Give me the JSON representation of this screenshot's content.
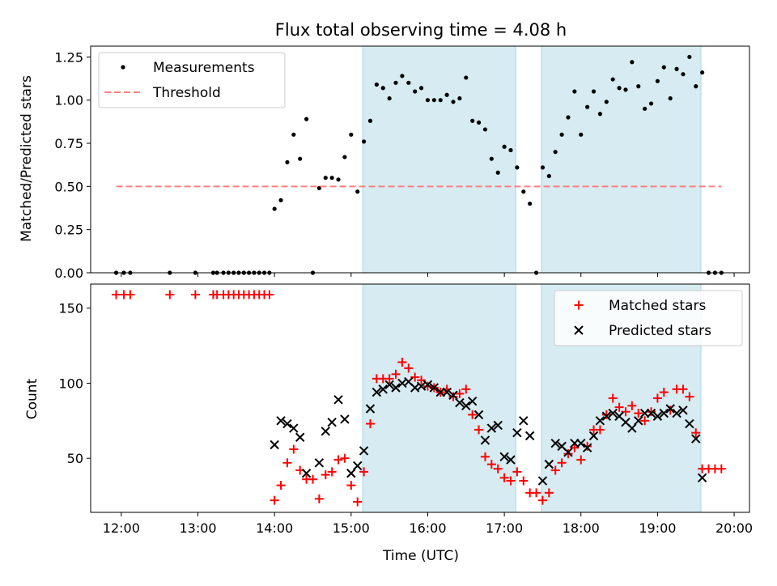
{
  "title": "Flux total observing time = 4.08 h",
  "xlabel": "Time (UTC)",
  "x_ticks": [
    "12:00",
    "13:00",
    "14:00",
    "15:00",
    "16:00",
    "17:00",
    "18:00",
    "19:00",
    "20:00"
  ],
  "colors": {
    "band": "#add8e6",
    "measurement": "#000000",
    "threshold": "#ff7f7f",
    "matched": "#ff0000",
    "predicted": "#000000"
  },
  "chart_data": [
    {
      "type": "scatter",
      "ylabel": "Matched/Predicted stars",
      "xlim": [
        "11:36",
        "20:12"
      ],
      "ylim": [
        0,
        1.3125
      ],
      "y_ticks": [
        "0.00",
        "0.25",
        "0.50",
        "0.75",
        "1.00",
        "1.25"
      ],
      "legend_position": "top-left",
      "grid": false,
      "shaded_intervals": [
        [
          "15:09",
          "17:09"
        ],
        [
          "17:29",
          "19:34"
        ]
      ],
      "series": [
        {
          "name": "Measurements",
          "marker": "dot",
          "points": [
            [
              "11:56",
              0
            ],
            [
              "12:02",
              0
            ],
            [
              "12:07",
              0
            ],
            [
              "12:38",
              0
            ],
            [
              "12:58",
              0
            ],
            [
              "13:12",
              0
            ],
            [
              "13:15",
              0
            ],
            [
              "13:20",
              0
            ],
            [
              "13:24",
              0
            ],
            [
              "13:28",
              0
            ],
            [
              "13:32",
              0
            ],
            [
              "13:36",
              0
            ],
            [
              "13:40",
              0
            ],
            [
              "13:44",
              0
            ],
            [
              "13:48",
              0
            ],
            [
              "13:52",
              0
            ],
            [
              "13:56",
              0
            ],
            [
              "14:00",
              0.37
            ],
            [
              "14:05",
              0.42
            ],
            [
              "14:10",
              0.64
            ],
            [
              "14:15",
              0.8
            ],
            [
              "14:20",
              0.66
            ],
            [
              "14:25",
              0.89
            ],
            [
              "14:30",
              0
            ],
            [
              "14:35",
              0.49
            ],
            [
              "14:40",
              0.55
            ],
            [
              "14:45",
              0.55
            ],
            [
              "14:50",
              0.54
            ],
            [
              "14:55",
              0.67
            ],
            [
              "15:00",
              0.8
            ],
            [
              "15:05",
              0.47
            ],
            [
              "15:10",
              0.76
            ],
            [
              "15:15",
              0.88
            ],
            [
              "15:20",
              1.09
            ],
            [
              "15:25",
              1.07
            ],
            [
              "15:30",
              1.01
            ],
            [
              "15:35",
              1.1
            ],
            [
              "15:40",
              1.14
            ],
            [
              "15:45",
              1.1
            ],
            [
              "15:50",
              1.05
            ],
            [
              "15:55",
              1.07
            ],
            [
              "16:00",
              1.0
            ],
            [
              "16:05",
              1.0
            ],
            [
              "16:10",
              1.0
            ],
            [
              "16:15",
              1.03
            ],
            [
              "16:20",
              0.99
            ],
            [
              "16:25",
              1.01
            ],
            [
              "16:30",
              1.13
            ],
            [
              "16:35",
              0.88
            ],
            [
              "16:40",
              0.87
            ],
            [
              "16:45",
              0.83
            ],
            [
              "16:50",
              0.66
            ],
            [
              "16:55",
              0.58
            ],
            [
              "17:00",
              0.73
            ],
            [
              "17:05",
              0.71
            ],
            [
              "17:10",
              0.61
            ],
            [
              "17:15",
              0.47
            ],
            [
              "17:20",
              0.4
            ],
            [
              "17:25",
              0
            ],
            [
              "17:30",
              0.61
            ],
            [
              "17:35",
              0.56
            ],
            [
              "17:40",
              0.7
            ],
            [
              "17:45",
              0.8
            ],
            [
              "17:50",
              0.9
            ],
            [
              "17:55",
              1.05
            ],
            [
              "18:00",
              0.8
            ],
            [
              "18:05",
              0.96
            ],
            [
              "18:10",
              1.05
            ],
            [
              "18:15",
              0.92
            ],
            [
              "18:20",
              0.99
            ],
            [
              "18:25",
              1.12
            ],
            [
              "18:30",
              1.07
            ],
            [
              "18:35",
              1.06
            ],
            [
              "18:40",
              1.22
            ],
            [
              "18:45",
              1.08
            ],
            [
              "18:50",
              0.95
            ],
            [
              "18:55",
              0.98
            ],
            [
              "19:00",
              1.11
            ],
            [
              "19:05",
              1.19
            ],
            [
              "19:10",
              1.01
            ],
            [
              "19:15",
              1.18
            ],
            [
              "19:20",
              1.15
            ],
            [
              "19:25",
              1.25
            ],
            [
              "19:30",
              1.08
            ],
            [
              "19:35",
              1.16
            ],
            [
              "19:40",
              0
            ],
            [
              "19:45",
              0
            ],
            [
              "19:50",
              0
            ]
          ]
        },
        {
          "name": "Threshold",
          "style": "dashed",
          "points": [
            [
              "11:56",
              0.5
            ],
            [
              "19:50",
              0.5
            ]
          ]
        }
      ]
    },
    {
      "type": "scatter",
      "ylabel": "Count",
      "xlim": [
        "11:36",
        "20:12"
      ],
      "ylim": [
        14,
        166
      ],
      "y_ticks": [
        "50",
        "100",
        "150"
      ],
      "legend_position": "top-right",
      "grid": false,
      "shaded_intervals": [
        [
          "15:09",
          "17:09"
        ],
        [
          "17:29",
          "19:34"
        ]
      ],
      "series": [
        {
          "name": "Matched stars",
          "marker": "plus",
          "points": [
            [
              "11:56",
              159
            ],
            [
              "12:02",
              159
            ],
            [
              "12:07",
              159
            ],
            [
              "12:38",
              159
            ],
            [
              "12:58",
              159
            ],
            [
              "13:12",
              159
            ],
            [
              "13:15",
              159
            ],
            [
              "13:20",
              159
            ],
            [
              "13:24",
              159
            ],
            [
              "13:28",
              159
            ],
            [
              "13:32",
              159
            ],
            [
              "13:36",
              159
            ],
            [
              "13:40",
              159
            ],
            [
              "13:44",
              159
            ],
            [
              "13:48",
              159
            ],
            [
              "13:52",
              159
            ],
            [
              "13:56",
              159
            ],
            [
              "14:00",
              22
            ],
            [
              "14:05",
              32
            ],
            [
              "14:10",
              47
            ],
            [
              "14:15",
              56
            ],
            [
              "14:20",
              42
            ],
            [
              "14:25",
              36
            ],
            [
              "14:30",
              36
            ],
            [
              "14:35",
              23
            ],
            [
              "14:40",
              39
            ],
            [
              "14:45",
              41
            ],
            [
              "14:50",
              49
            ],
            [
              "14:55",
              50
            ],
            [
              "15:00",
              32
            ],
            [
              "15:05",
              21
            ],
            [
              "15:10",
              41
            ],
            [
              "15:15",
              73
            ],
            [
              "15:20",
              103
            ],
            [
              "15:25",
              103
            ],
            [
              "15:30",
              103
            ],
            [
              "15:35",
              106
            ],
            [
              "15:40",
              114
            ],
            [
              "15:45",
              110
            ],
            [
              "15:50",
              104
            ],
            [
              "15:55",
              102
            ],
            [
              "16:00",
              98
            ],
            [
              "16:05",
              97
            ],
            [
              "16:10",
              94
            ],
            [
              "16:15",
              96
            ],
            [
              "16:20",
              91
            ],
            [
              "16:25",
              93
            ],
            [
              "16:30",
              96
            ],
            [
              "16:35",
              79
            ],
            [
              "16:40",
              69
            ],
            [
              "16:45",
              51
            ],
            [
              "16:50",
              46
            ],
            [
              "16:55",
              43
            ],
            [
              "17:00",
              37
            ],
            [
              "17:05",
              35
            ],
            [
              "17:10",
              41
            ],
            [
              "17:15",
              35
            ],
            [
              "17:20",
              27
            ],
            [
              "17:25",
              27
            ],
            [
              "17:30",
              22
            ],
            [
              "17:35",
              27
            ],
            [
              "17:40",
              42
            ],
            [
              "17:45",
              47
            ],
            [
              "17:50",
              53
            ],
            [
              "17:55",
              57
            ],
            [
              "18:00",
              49
            ],
            [
              "18:05",
              58
            ],
            [
              "18:10",
              69
            ],
            [
              "18:15",
              69
            ],
            [
              "18:20",
              79
            ],
            [
              "18:25",
              90
            ],
            [
              "18:30",
              84
            ],
            [
              "18:35",
              81
            ],
            [
              "18:40",
              85
            ],
            [
              "18:45",
              80
            ],
            [
              "18:50",
              75
            ],
            [
              "18:55",
              81
            ],
            [
              "19:00",
              90
            ],
            [
              "19:05",
              94
            ],
            [
              "19:10",
              82
            ],
            [
              "19:15",
              96
            ],
            [
              "19:20",
              96
            ],
            [
              "19:25",
              91
            ],
            [
              "19:30",
              67
            ],
            [
              "19:35",
              43
            ],
            [
              "19:40",
              43
            ],
            [
              "19:45",
              43
            ],
            [
              "19:50",
              43
            ]
          ]
        },
        {
          "name": "Predicted stars",
          "marker": "x",
          "points": [
            [
              "14:00",
              59
            ],
            [
              "14:05",
              75
            ],
            [
              "14:10",
              73
            ],
            [
              "14:15",
              70
            ],
            [
              "14:20",
              64
            ],
            [
              "14:25",
              40
            ],
            [
              "14:35",
              47
            ],
            [
              "14:40",
              68
            ],
            [
              "14:45",
              74
            ],
            [
              "14:50",
              89
            ],
            [
              "14:55",
              76
            ],
            [
              "15:00",
              40
            ],
            [
              "15:05",
              45
            ],
            [
              "15:10",
              55
            ],
            [
              "15:15",
              83
            ],
            [
              "15:20",
              94
            ],
            [
              "15:25",
              96
            ],
            [
              "15:30",
              99
            ],
            [
              "15:35",
              97
            ],
            [
              "15:40",
              100
            ],
            [
              "15:45",
              101
            ],
            [
              "15:50",
              97
            ],
            [
              "15:55",
              98
            ],
            [
              "16:00",
              99
            ],
            [
              "16:05",
              97
            ],
            [
              "16:10",
              94
            ],
            [
              "16:15",
              94
            ],
            [
              "16:20",
              92
            ],
            [
              "16:25",
              87
            ],
            [
              "16:30",
              85
            ],
            [
              "16:35",
              88
            ],
            [
              "16:40",
              79
            ],
            [
              "16:45",
              62
            ],
            [
              "16:50",
              70
            ],
            [
              "16:55",
              72
            ],
            [
              "17:00",
              51
            ],
            [
              "17:05",
              49
            ],
            [
              "17:10",
              67
            ],
            [
              "17:15",
              75
            ],
            [
              "17:20",
              65
            ],
            [
              "17:30",
              35
            ],
            [
              "17:35",
              46
            ],
            [
              "17:40",
              60
            ],
            [
              "17:45",
              58
            ],
            [
              "17:50",
              54
            ],
            [
              "17:55",
              60
            ],
            [
              "18:00",
              60
            ],
            [
              "18:05",
              57
            ],
            [
              "18:10",
              65
            ],
            [
              "18:15",
              75
            ],
            [
              "18:20",
              78
            ],
            [
              "18:25",
              80
            ],
            [
              "18:30",
              78
            ],
            [
              "18:35",
              74
            ],
            [
              "18:40",
              70
            ],
            [
              "18:45",
              75
            ],
            [
              "18:50",
              80
            ],
            [
              "18:55",
              80
            ],
            [
              "19:00",
              78
            ],
            [
              "19:05",
              80
            ],
            [
              "19:10",
              83
            ],
            [
              "19:15",
              80
            ],
            [
              "19:20",
              82
            ],
            [
              "19:25",
              73
            ],
            [
              "19:30",
              63
            ],
            [
              "19:35",
              37
            ]
          ]
        }
      ]
    }
  ]
}
